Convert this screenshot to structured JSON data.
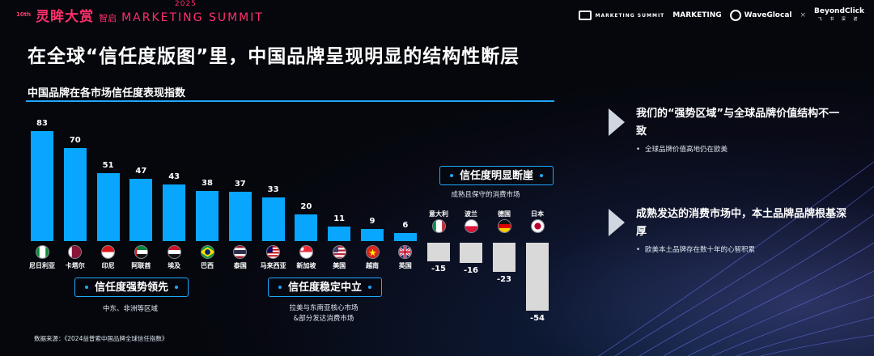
{
  "header": {
    "edition": "10th",
    "event_cn": "灵眸大赏",
    "event_sub": "智启",
    "event_en": "MARKETING SUMMIT",
    "year": "2025",
    "logos": [
      {
        "name": "marketing-summit-logo",
        "text": "MARKETING SUMMIT"
      },
      {
        "name": "marketing-logo",
        "text": "MARKETING"
      },
      {
        "name": "waveglocal-logo",
        "text": "WaveGlocal"
      },
      {
        "name": "separator",
        "text": "×"
      },
      {
        "name": "beyondclick-logo",
        "text": "BeyondClick",
        "sub": "飞 书 深 诺"
      }
    ]
  },
  "page_title": "在全球“信任度版图”里，中国品牌呈现明显的结构性断层",
  "colors": {
    "positive_bar": "#08a6ff",
    "negative_bar": "#d9d9d9",
    "accent": "#1fa7ff",
    "brand_pink": "#ff2f6a"
  },
  "chart_data": {
    "type": "bar",
    "title": "中国品牌在各市场信任度表现指数",
    "categories": [
      "尼日利亚",
      "卡塔尔",
      "印尼",
      "阿联酋",
      "埃及",
      "巴西",
      "泰国",
      "马来西亚",
      "新加坡",
      "美国",
      "越南",
      "英国",
      "意大利",
      "波兰",
      "德国",
      "日本"
    ],
    "values": [
      83,
      70,
      51,
      47,
      43,
      38,
      37,
      33,
      20,
      11,
      9,
      6,
      -15,
      -16,
      -23,
      -54
    ],
    "value_labels": [
      "83",
      "70",
      "51",
      "47",
      "43",
      "38",
      "37",
      "33",
      "20",
      "11",
      "9",
      "6",
      "-15",
      "-16",
      "-23",
      "-54"
    ],
    "flags": [
      "nigeria",
      "qatar",
      "indonesia",
      "uae",
      "egypt",
      "brazil",
      "thailand",
      "malaysia",
      "singapore",
      "usa",
      "vietnam",
      "uk",
      "italy",
      "poland",
      "germany",
      "japan"
    ],
    "groups": [
      {
        "label": "信任度强势领先",
        "note": "中东、非洲等区域"
      },
      {
        "label": "信任度稳定中立",
        "note_lines": [
          "拉美与东南亚核心市场",
          "&部分发达消费市场"
        ]
      },
      {
        "label": "信任度明显断崖",
        "note": "成熟且保守的消费市场"
      }
    ]
  },
  "source": "数据来源：《2024益普索中国品牌全球信任指数》",
  "insights": [
    {
      "heading": "我们的“强势区域”与全球品牌价值结构不一致",
      "bullet": "全球品牌价值高地仍在欧美"
    },
    {
      "heading": "成熟发达的消费市场中，本土品牌品牌根基深厚",
      "bullet": "欧美本土品牌存在数十年的心智积累"
    }
  ]
}
